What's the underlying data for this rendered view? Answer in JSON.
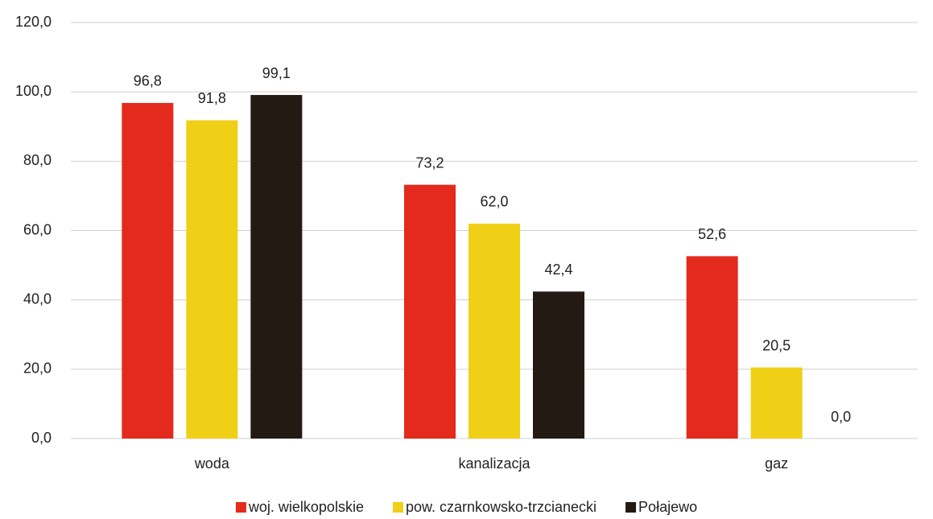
{
  "chart_data": {
    "type": "bar",
    "categories": [
      "woda",
      "kanalizacja",
      "gaz"
    ],
    "series": [
      {
        "name": "woj. wielkopolskie",
        "color": "#e32a1d",
        "values": [
          96.8,
          73.2,
          52.6
        ],
        "value_labels": [
          "96,8",
          "73,2",
          "52,6"
        ]
      },
      {
        "name": "pow. czarnkowsko-trzcianecki",
        "color": "#f0cf17",
        "values": [
          91.8,
          62.0,
          20.5
        ],
        "value_labels": [
          "91,8",
          "62,0",
          "20,5"
        ]
      },
      {
        "name": "Połajewo",
        "color": "#231a13",
        "values": [
          99.1,
          42.4,
          0.0
        ],
        "value_labels": [
          "99,1",
          "42,4",
          "0,0"
        ]
      }
    ],
    "ylim": [
      0,
      120
    ],
    "yticks": [
      {
        "value": 0,
        "label": "0,0"
      },
      {
        "value": 20,
        "label": "20,0"
      },
      {
        "value": 40,
        "label": "40,0"
      },
      {
        "value": 60,
        "label": "60,0"
      },
      {
        "value": 80,
        "label": "80,0"
      },
      {
        "value": 100,
        "label": "100,0"
      },
      {
        "value": 120,
        "label": "120,0"
      }
    ],
    "grid": true,
    "legend": "bottom"
  }
}
